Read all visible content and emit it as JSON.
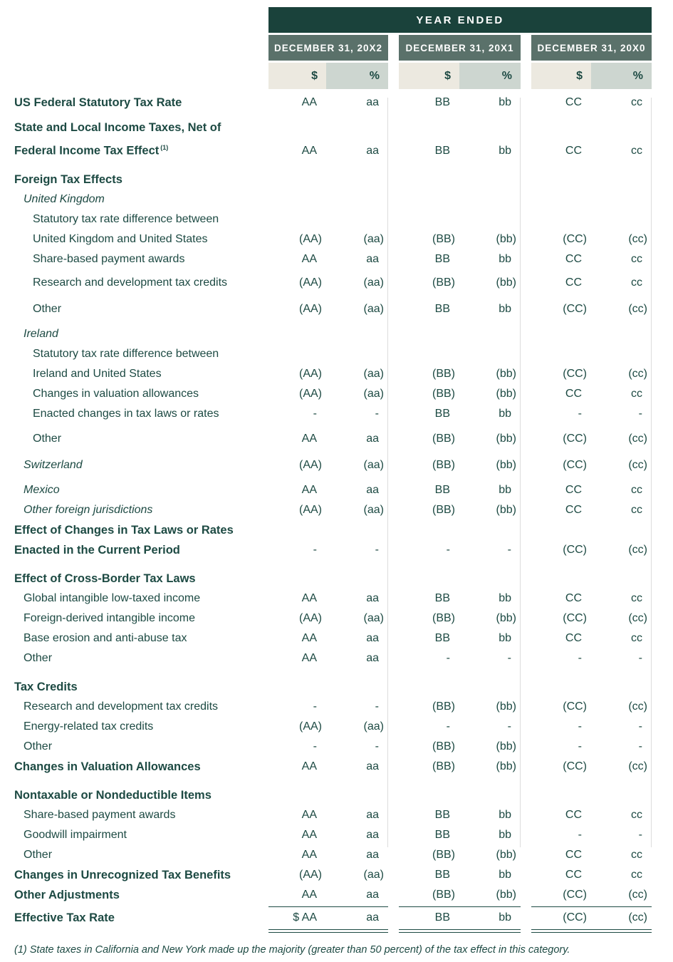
{
  "header": {
    "year_ended_label": "YEAR ENDED",
    "columns": [
      "DECEMBER 31, 20X2",
      "DECEMBER 31, 20X1",
      "DECEMBER 31, 20X0"
    ],
    "dollar_label": "$",
    "percent_label": "%"
  },
  "colors": {
    "dark_teal_bar": "#1a423b",
    "column_header_green": "#5a716a",
    "dollar_column_beige": "#ece9e0",
    "percent_column_gray_green": "#cdd6d0",
    "text": "#1d4a43",
    "group_separator_line": "#dcdcdc"
  },
  "rows": [
    {
      "label_lines": [
        "US Federal Statutory Tax Rate"
      ],
      "style": "bold",
      "indent": 0,
      "gap": "xs",
      "values": [
        "AA",
        "aa",
        "BB",
        "bb",
        "CC",
        "cc"
      ]
    },
    {
      "label_lines": [
        "State and Local Income Taxes, Net of",
        "Federal Income Tax Effect"
      ],
      "sup": "(1)",
      "style": "bold",
      "indent": 0,
      "gap": "sm",
      "values": [
        "AA",
        "aa",
        "BB",
        "bb",
        "CC",
        "cc"
      ]
    },
    {
      "label_lines": [
        "Foreign Tax Effects"
      ],
      "style": "bold",
      "indent": 0,
      "gap": "lg",
      "values": null
    },
    {
      "label_lines": [
        "United Kingdom"
      ],
      "style": "italic",
      "indent": 1,
      "gap": "none",
      "values": null
    },
    {
      "label_lines": [
        "Statutory tax rate difference between",
        "United Kingdom and United States"
      ],
      "style": "plain",
      "indent": 2,
      "gap": "none",
      "values": [
        "(AA)",
        "(aa)",
        "(BB)",
        "(bb)",
        "(CC)",
        "(cc)"
      ]
    },
    {
      "label_lines": [
        "Share-based payment awards"
      ],
      "style": "plain",
      "indent": 2,
      "gap": "none",
      "values": [
        "AA",
        "aa",
        "BB",
        "bb",
        "CC",
        "cc"
      ]
    },
    {
      "label_lines": [
        "Research and development tax credits"
      ],
      "style": "plain",
      "indent": 2,
      "gap": "xs",
      "values": [
        "(AA)",
        "(aa)",
        "(BB)",
        "(bb)",
        "CC",
        "cc"
      ]
    },
    {
      "label_lines": [
        "Other"
      ],
      "style": "plain",
      "indent": 2,
      "gap": "md",
      "values": [
        "(AA)",
        "(aa)",
        "BB",
        "bb",
        "(CC)",
        "(cc)"
      ]
    },
    {
      "label_lines": [
        "Ireland"
      ],
      "style": "italic",
      "indent": 1,
      "gap": "sm",
      "values": null
    },
    {
      "label_lines": [
        "Statutory tax rate difference between",
        "Ireland and United States"
      ],
      "style": "plain",
      "indent": 2,
      "gap": "none",
      "values": [
        "(AA)",
        "(aa)",
        "(BB)",
        "(bb)",
        "(CC)",
        "(cc)"
      ]
    },
    {
      "label_lines": [
        "Changes in valuation allowances"
      ],
      "style": "plain",
      "indent": 2,
      "gap": "none",
      "values": [
        "(AA)",
        "(aa)",
        "(BB)",
        "(bb)",
        "CC",
        "cc"
      ]
    },
    {
      "label_lines": [
        "Enacted changes in tax laws or rates"
      ],
      "style": "plain",
      "indent": 2,
      "gap": "none",
      "values": [
        "-",
        "-",
        "BB",
        "bb",
        "-",
        "-"
      ]
    },
    {
      "label_lines": [
        "Other"
      ],
      "style": "plain",
      "indent": 2,
      "gap": "sm",
      "values": [
        "AA",
        "aa",
        "(BB)",
        "(bb)",
        "(CC)",
        "(cc)"
      ]
    },
    {
      "label_lines": [
        "Switzerland"
      ],
      "style": "italic",
      "indent": 1,
      "gap": "md",
      "values": [
        "(AA)",
        "(aa)",
        "(BB)",
        "(bb)",
        "(CC)",
        "(cc)"
      ]
    },
    {
      "label_lines": [
        "Mexico"
      ],
      "style": "italic",
      "indent": 1,
      "gap": "sm",
      "values": [
        "AA",
        "aa",
        "BB",
        "bb",
        "CC",
        "cc"
      ]
    },
    {
      "label_lines": [
        "Other foreign jurisdictions"
      ],
      "style": "italic",
      "indent": 1,
      "gap": "none",
      "values": [
        "(AA)",
        "(aa)",
        "(BB)",
        "(bb)",
        "CC",
        "cc"
      ]
    },
    {
      "label_lines": [
        "Effect of Changes in Tax Laws or Rates",
        "Enacted in the Current Period"
      ],
      "style": "bold",
      "indent": 0,
      "gap": "none",
      "values": [
        "-",
        "-",
        "-",
        "-",
        "(CC)",
        "(cc)"
      ]
    },
    {
      "label_lines": [
        "Effect of Cross-Border Tax Laws"
      ],
      "style": "bold",
      "indent": 0,
      "gap": "lg",
      "values": null
    },
    {
      "label_lines": [
        "Global intangible low-taxed income"
      ],
      "style": "plain",
      "indent": 1,
      "gap": "none",
      "values": [
        "AA",
        "aa",
        "BB",
        "bb",
        "CC",
        "cc"
      ]
    },
    {
      "label_lines": [
        "Foreign-derived intangible income"
      ],
      "style": "plain",
      "indent": 1,
      "gap": "none",
      "values": [
        "(AA)",
        "(aa)",
        "(BB)",
        "(bb)",
        "(CC)",
        "(cc)"
      ]
    },
    {
      "label_lines": [
        "Base erosion and anti-abuse tax"
      ],
      "style": "plain",
      "indent": 1,
      "gap": "none",
      "values": [
        "AA",
        "aa",
        "BB",
        "bb",
        "CC",
        "cc"
      ]
    },
    {
      "label_lines": [
        "Other"
      ],
      "style": "plain",
      "indent": 1,
      "gap": "none",
      "values": [
        "AA",
        "aa",
        "-",
        "-",
        "-",
        "-"
      ]
    },
    {
      "label_lines": [
        "Tax Credits"
      ],
      "style": "bold",
      "indent": 0,
      "gap": "lg",
      "values": null
    },
    {
      "label_lines": [
        "Research and development tax credits"
      ],
      "style": "plain",
      "indent": 1,
      "gap": "none",
      "values": [
        "-",
        "-",
        "(BB)",
        "(bb)",
        "(CC)",
        "(cc)"
      ]
    },
    {
      "label_lines": [
        "Energy-related tax credits"
      ],
      "style": "plain",
      "indent": 1,
      "gap": "none",
      "values": [
        "(AA)",
        "(aa)",
        "-",
        "-",
        "-",
        "-"
      ]
    },
    {
      "label_lines": [
        "Other"
      ],
      "style": "plain",
      "indent": 1,
      "gap": "none",
      "values": [
        "-",
        "-",
        "(BB)",
        "(bb)",
        "-",
        "-"
      ]
    },
    {
      "label_lines": [
        "Changes in Valuation Allowances"
      ],
      "style": "bold",
      "indent": 0,
      "gap": "none",
      "values": [
        "AA",
        "aa",
        "(BB)",
        "(bb)",
        "(CC)",
        "(cc)"
      ]
    },
    {
      "label_lines": [
        "Nontaxable or Nondeductible Items"
      ],
      "style": "bold",
      "indent": 0,
      "gap": "lg",
      "values": null
    },
    {
      "label_lines": [
        "Share-based payment awards"
      ],
      "style": "plain",
      "indent": 1,
      "gap": "none",
      "values": [
        "AA",
        "aa",
        "BB",
        "bb",
        "CC",
        "cc"
      ]
    },
    {
      "label_lines": [
        "Goodwill impairment"
      ],
      "style": "plain",
      "indent": 1,
      "gap": "none",
      "values": [
        "AA",
        "aa",
        "BB",
        "bb",
        "-",
        "-"
      ]
    },
    {
      "label_lines": [
        "Other"
      ],
      "style": "plain",
      "indent": 1,
      "gap": "none",
      "values": [
        "AA",
        "aa",
        "(BB)",
        "(bb)",
        "CC",
        "cc"
      ]
    },
    {
      "label_lines": [
        "Changes in Unrecognized Tax Benefits"
      ],
      "style": "bold",
      "indent": 0,
      "gap": "none",
      "values": [
        "(AA)",
        "(aa)",
        "BB",
        "bb",
        "CC",
        "cc"
      ]
    },
    {
      "label_lines": [
        "Other Adjustments"
      ],
      "style": "bold",
      "indent": 0,
      "gap": "none",
      "values": [
        "AA",
        "aa",
        "(BB)",
        "(bb)",
        "(CC)",
        "(cc)"
      ]
    },
    {
      "label_lines": [
        "Effective Tax Rate"
      ],
      "style": "bold",
      "indent": 0,
      "gap": "none",
      "is_total": true,
      "values": [
        "$ AA",
        "aa",
        "BB",
        "bb",
        "(CC)",
        "(cc)"
      ]
    }
  ],
  "footnote": "(1) State taxes in California and New York made up the majority (greater than 50 percent) of the tax effect in this category."
}
